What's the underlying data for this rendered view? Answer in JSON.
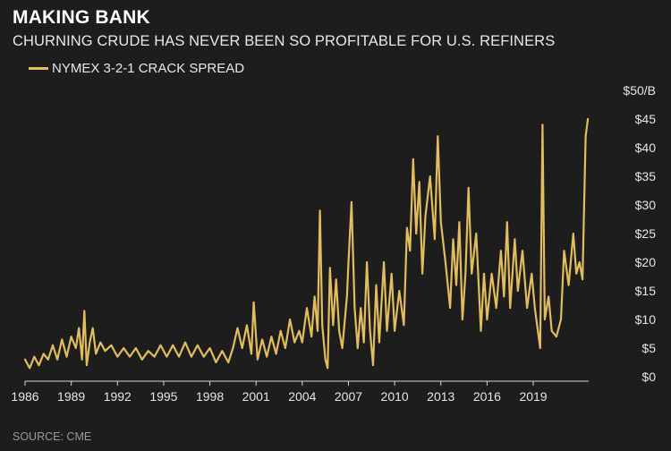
{
  "chart_data": {
    "type": "line",
    "title": "MAKING BANK",
    "subtitle": "CHURNING CRUDE HAS NEVER BEEN SO PROFITABLE FOR U.S. REFINERS",
    "legend": [
      "NYMEX 3-2-1 CRACK SPREAD"
    ],
    "legend_position": "top-left",
    "source": "SOURCE: CME",
    "ylabel": "$/B",
    "ylim": [
      0,
      50
    ],
    "xlim": [
      1986,
      2022.6
    ],
    "y_ticks": [
      {
        "value": 50,
        "label": "$50/B"
      },
      {
        "value": 45,
        "label": "$45"
      },
      {
        "value": 40,
        "label": "$40"
      },
      {
        "value": 35,
        "label": "$35"
      },
      {
        "value": 30,
        "label": "$30"
      },
      {
        "value": 25,
        "label": "$25"
      },
      {
        "value": 20,
        "label": "$20"
      },
      {
        "value": 15,
        "label": "$15"
      },
      {
        "value": 10,
        "label": "$10"
      },
      {
        "value": 5,
        "label": "$5"
      },
      {
        "value": 0,
        "label": "$0"
      }
    ],
    "x_ticks": [
      {
        "value": 1986,
        "label": "1986"
      },
      {
        "value": 1989,
        "label": "1989"
      },
      {
        "value": 1992,
        "label": "1992"
      },
      {
        "value": 1995,
        "label": "1995"
      },
      {
        "value": 1998,
        "label": "1998"
      },
      {
        "value": 2001,
        "label": "2001"
      },
      {
        "value": 2004,
        "label": "2004"
      },
      {
        "value": 2007,
        "label": "2007"
      },
      {
        "value": 2010,
        "label": "2010"
      },
      {
        "value": 2013,
        "label": "2013"
      },
      {
        "value": 2016,
        "label": "2016"
      },
      {
        "value": 2019,
        "label": "2019"
      }
    ],
    "series": [
      {
        "name": "NYMEX 3-2-1 CRACK SPREAD",
        "color": "#e2bd5f",
        "points": [
          [
            1986.0,
            3
          ],
          [
            1986.3,
            1.5
          ],
          [
            1986.6,
            3.5
          ],
          [
            1986.9,
            2
          ],
          [
            1987.2,
            4
          ],
          [
            1987.5,
            3
          ],
          [
            1987.8,
            5.5
          ],
          [
            1988.1,
            3
          ],
          [
            1988.4,
            6.5
          ],
          [
            1988.7,
            3.5
          ],
          [
            1989.0,
            7
          ],
          [
            1989.3,
            5
          ],
          [
            1989.5,
            8.5
          ],
          [
            1989.7,
            3
          ],
          [
            1989.85,
            11.5
          ],
          [
            1990.0,
            2
          ],
          [
            1990.2,
            6
          ],
          [
            1990.4,
            8.5
          ],
          [
            1990.6,
            4
          ],
          [
            1990.9,
            6
          ],
          [
            1991.2,
            4.5
          ],
          [
            1991.6,
            5.5
          ],
          [
            1992.0,
            3.5
          ],
          [
            1992.4,
            5
          ],
          [
            1992.8,
            3.5
          ],
          [
            1993.2,
            5
          ],
          [
            1993.6,
            3
          ],
          [
            1994.0,
            4.5
          ],
          [
            1994.4,
            3.5
          ],
          [
            1994.8,
            5.5
          ],
          [
            1995.2,
            3.5
          ],
          [
            1995.6,
            5.5
          ],
          [
            1996.0,
            3.5
          ],
          [
            1996.4,
            6
          ],
          [
            1996.8,
            3.5
          ],
          [
            1997.2,
            5.5
          ],
          [
            1997.6,
            3.5
          ],
          [
            1998.0,
            5
          ],
          [
            1998.4,
            2.5
          ],
          [
            1998.8,
            4.5
          ],
          [
            1999.2,
            2.5
          ],
          [
            1999.5,
            5
          ],
          [
            1999.8,
            8.5
          ],
          [
            2000.1,
            5
          ],
          [
            2000.4,
            9
          ],
          [
            2000.7,
            4
          ],
          [
            2000.85,
            13
          ],
          [
            2001.1,
            3
          ],
          [
            2001.4,
            6.5
          ],
          [
            2001.7,
            3.5
          ],
          [
            2002.0,
            7
          ],
          [
            2002.3,
            4
          ],
          [
            2002.6,
            8
          ],
          [
            2002.9,
            5
          ],
          [
            2003.2,
            10
          ],
          [
            2003.5,
            6
          ],
          [
            2003.8,
            8
          ],
          [
            2004.0,
            6
          ],
          [
            2004.3,
            12
          ],
          [
            2004.6,
            7
          ],
          [
            2004.8,
            14
          ],
          [
            2005.0,
            8
          ],
          [
            2005.15,
            29
          ],
          [
            2005.3,
            9
          ],
          [
            2005.5,
            3
          ],
          [
            2005.65,
            1.5
          ],
          [
            2005.8,
            19
          ],
          [
            2006.0,
            9
          ],
          [
            2006.2,
            17
          ],
          [
            2006.4,
            8
          ],
          [
            2006.6,
            5
          ],
          [
            2006.9,
            14
          ],
          [
            2007.0,
            20
          ],
          [
            2007.2,
            30.5
          ],
          [
            2007.4,
            12
          ],
          [
            2007.6,
            5
          ],
          [
            2007.8,
            12
          ],
          [
            2008.0,
            6
          ],
          [
            2008.2,
            20
          ],
          [
            2008.4,
            8
          ],
          [
            2008.6,
            2
          ],
          [
            2008.8,
            16
          ],
          [
            2009.0,
            6
          ],
          [
            2009.3,
            20
          ],
          [
            2009.5,
            8
          ],
          [
            2009.8,
            18
          ],
          [
            2010.0,
            8
          ],
          [
            2010.3,
            15
          ],
          [
            2010.6,
            9
          ],
          [
            2010.8,
            26
          ],
          [
            2011.0,
            22
          ],
          [
            2011.2,
            38
          ],
          [
            2011.4,
            25
          ],
          [
            2011.6,
            34
          ],
          [
            2011.8,
            18
          ],
          [
            2012.0,
            28
          ],
          [
            2012.3,
            35
          ],
          [
            2012.6,
            24
          ],
          [
            2012.8,
            42
          ],
          [
            2013.0,
            27
          ],
          [
            2013.3,
            20
          ],
          [
            2013.6,
            12
          ],
          [
            2013.8,
            24
          ],
          [
            2014.0,
            16
          ],
          [
            2014.2,
            27
          ],
          [
            2014.4,
            10
          ],
          [
            2014.6,
            18
          ],
          [
            2014.8,
            33
          ],
          [
            2015.0,
            18
          ],
          [
            2015.3,
            25
          ],
          [
            2015.6,
            8
          ],
          [
            2015.8,
            18
          ],
          [
            2016.0,
            10
          ],
          [
            2016.3,
            18
          ],
          [
            2016.6,
            12
          ],
          [
            2016.9,
            22
          ],
          [
            2017.1,
            14
          ],
          [
            2017.3,
            27
          ],
          [
            2017.5,
            12
          ],
          [
            2017.8,
            24
          ],
          [
            2018.0,
            15
          ],
          [
            2018.3,
            22
          ],
          [
            2018.6,
            12
          ],
          [
            2018.9,
            18
          ],
          [
            2019.1,
            12
          ],
          [
            2019.3,
            8
          ],
          [
            2019.45,
            5
          ],
          [
            2019.6,
            44
          ],
          [
            2019.75,
            10
          ],
          [
            2020.0,
            14
          ],
          [
            2020.2,
            8
          ],
          [
            2020.5,
            7
          ],
          [
            2020.8,
            10
          ],
          [
            2021.0,
            22
          ],
          [
            2021.3,
            16
          ],
          [
            2021.6,
            25
          ],
          [
            2021.8,
            18
          ],
          [
            2022.0,
            20
          ],
          [
            2022.2,
            17
          ],
          [
            2022.4,
            42
          ],
          [
            2022.55,
            45
          ]
        ]
      }
    ]
  }
}
